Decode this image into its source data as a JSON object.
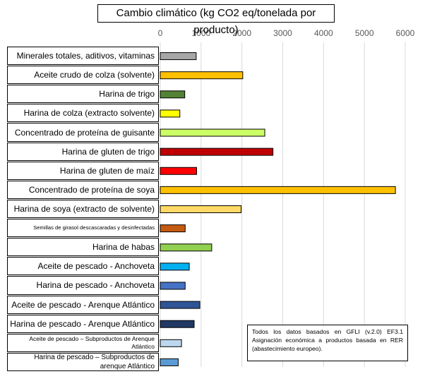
{
  "chart_data": {
    "type": "bar",
    "orientation": "horizontal",
    "title": "Cambio climático (kg CO2 eq/tonelada por producto)",
    "xlim": [
      0,
      6000
    ],
    "xticks": [
      "0",
      "1000",
      "2000",
      "3000",
      "4000",
      "5000",
      "6000"
    ],
    "xtick_values": [
      0,
      1000,
      2000,
      3000,
      4000,
      5000,
      6000
    ],
    "grid": "vertical",
    "categories": [
      "Minerales totales, aditivos, vitaminas",
      "Aceite crudo de colza (solvente)",
      "Harina de trigo",
      "Harina de colza (extracto solvente)",
      "Concentrado de proteína de guisante",
      "Harina de gluten de trigo",
      "Harina de gluten de maíz",
      "Concentrado de proteína de soya",
      "Harina de soya (extracto de solvente)",
      "Semillas de girasol descascaradas y desinfectadas",
      "Harina de habas",
      "Aceite de pescado - Anchoveta",
      "Harina de pescado - Anchoveta",
      "Aceite de pescado - Arenque Atlántico",
      "Harina de pescado - Arenque Atlántico",
      "Aceite de pescado – Subproductos de Arenque Atlántico",
      "Harina de pescado – Subproductos de arenque Atlántico"
    ],
    "values": [
      880,
      2020,
      600,
      480,
      2560,
      2760,
      890,
      5760,
      1980,
      610,
      1260,
      710,
      610,
      970,
      830,
      520,
      440
    ],
    "colors": [
      "#A6A6A6",
      "#FFC000",
      "#548235",
      "#FFFF00",
      "#CCFF66",
      "#C00000",
      "#FF0000",
      "#FFC000",
      "#FFD966",
      "#C55A11",
      "#92D050",
      "#00B0F0",
      "#4472C4",
      "#2F5597",
      "#203864",
      "#BDD7EE",
      "#5B9BD5"
    ],
    "note": [
      "Todos los datos basados en GFLI (v.2.0) EF3.1",
      "Asignación económica a productos basada en RER",
      "(abastecimiento europeo)."
    ]
  }
}
